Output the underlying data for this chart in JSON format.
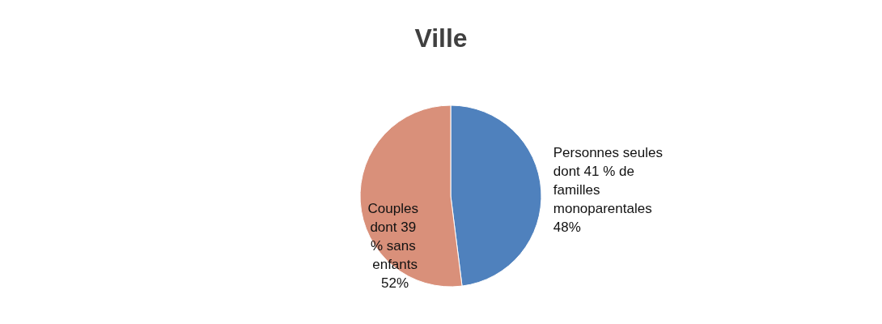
{
  "chart_data": {
    "type": "pie",
    "title": "Ville",
    "categories": [
      "Personnes seules dont 41 % de familles monoparentales",
      "Couples dont 39 % sans enfants"
    ],
    "values": [
      48,
      52
    ],
    "colors": [
      "#4f81bd",
      "#d9907a"
    ],
    "value_labels": [
      "48%",
      "52%"
    ],
    "legend": false
  }
}
